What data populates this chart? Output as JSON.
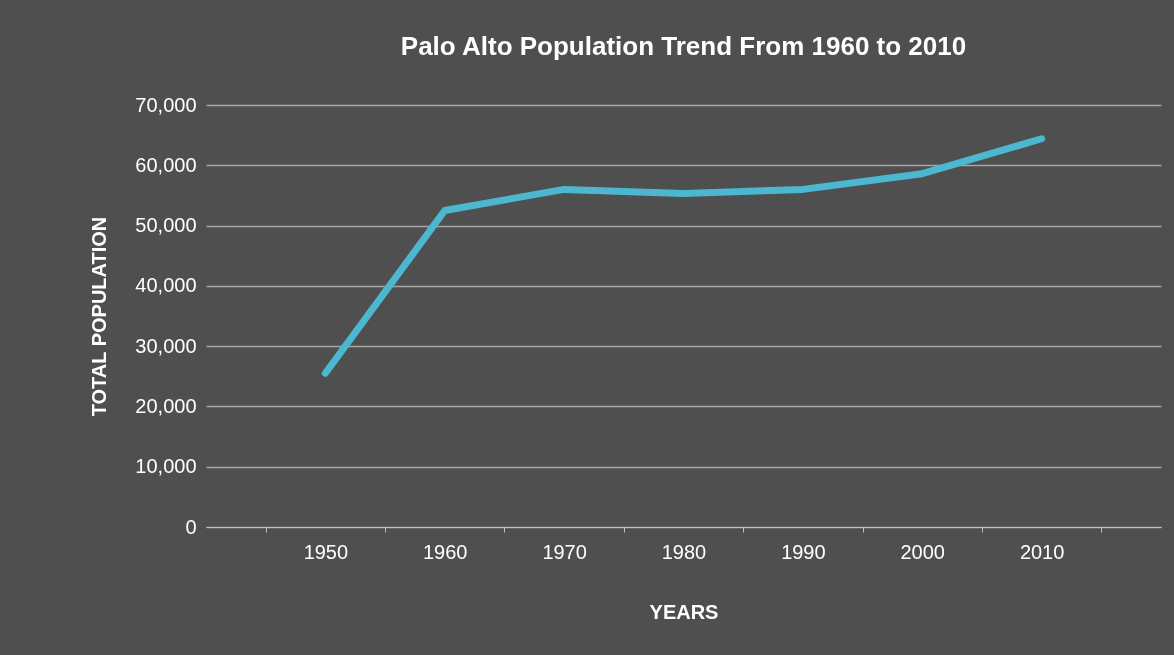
{
  "chart_data": {
    "type": "line",
    "title": "Palo Alto Population Trend From 1960 to 2010",
    "xlabel": "YEARS",
    "ylabel": "TOTAL POPULATION",
    "categories": [
      "1950",
      "1960",
      "1970",
      "1980",
      "1990",
      "2000",
      "2010"
    ],
    "series": [
      {
        "color": "#4bb8d0",
        "values": [
          25500,
          52500,
          56000,
          55300,
          56000,
          58600,
          64400
        ]
      }
    ],
    "ylim": [
      0,
      70000
    ],
    "yticks": [
      0,
      {
        "value": 10000,
        "label": "10,000"
      },
      {
        "value": 20000,
        "label": "20,000"
      },
      {
        "value": 30000,
        "label": "30,000"
      },
      {
        "value": 40000,
        "label": "40,000"
      },
      {
        "value": 50000,
        "label": "50,000"
      },
      {
        "value": 60000,
        "label": "60,000"
      },
      {
        "value": 70000,
        "label": "70,000"
      }
    ],
    "grid": "y",
    "marker": "none",
    "line_style": "solid"
  }
}
